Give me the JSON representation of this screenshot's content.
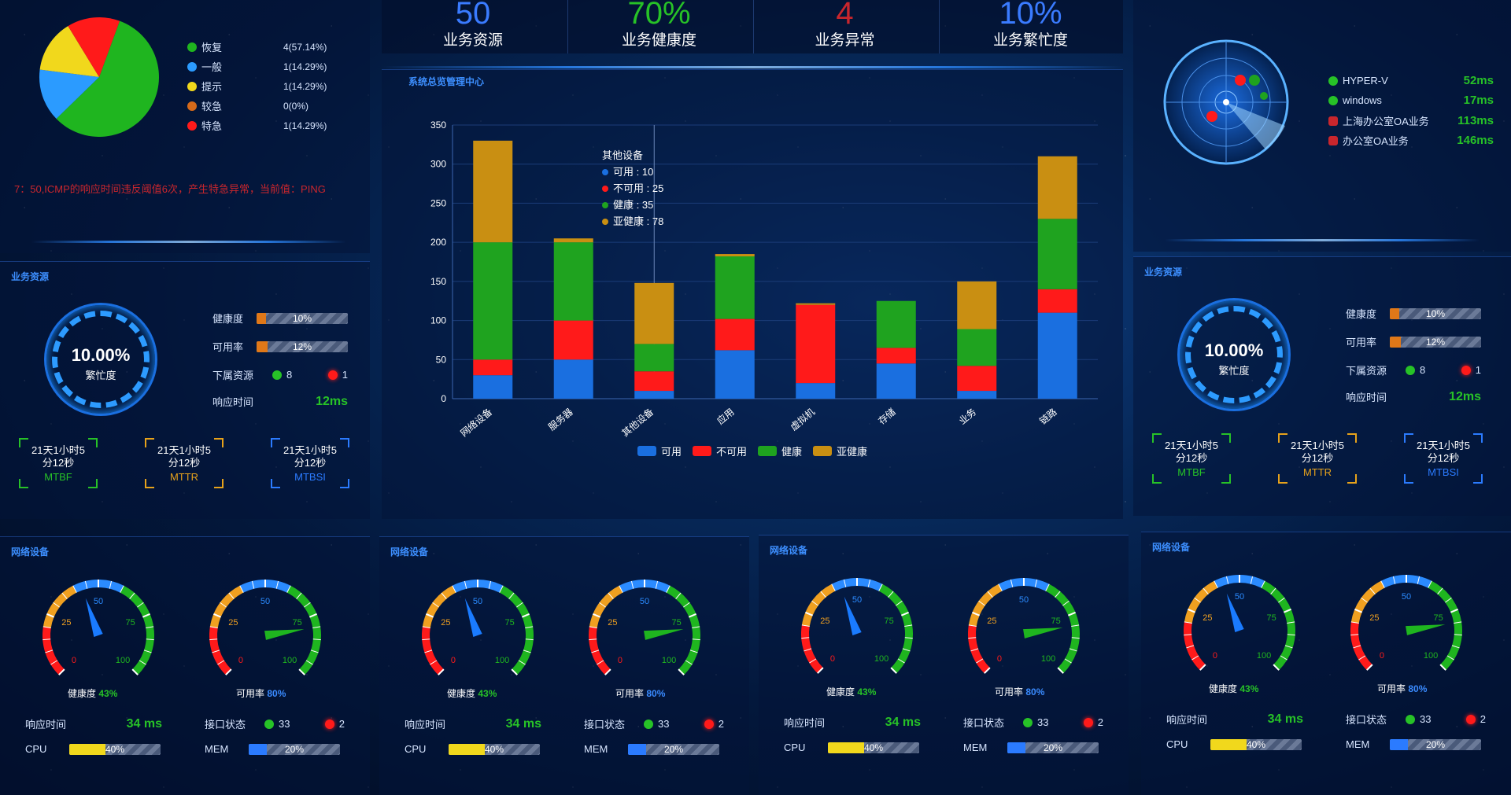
{
  "kpis": [
    {
      "value": "50",
      "label": "业务资源",
      "color": "#3a7bff"
    },
    {
      "value": "70%",
      "label": "业务健康度",
      "color": "#27c227"
    },
    {
      "value": "4",
      "label": "业务异常",
      "color": "#c9262d"
    },
    {
      "value": "10%",
      "label": "业务繁忙度",
      "color": "#3a7bff"
    }
  ],
  "alarm": {
    "legend": [
      {
        "label": "恢复",
        "value": "4(57.14%)",
        "color": "#1fb51f"
      },
      {
        "label": "一般",
        "value": "1(14.29%)",
        "color": "#2b9bff"
      },
      {
        "label": "提示",
        "value": "1(14.29%)",
        "color": "#f1d81c"
      },
      {
        "label": "较急",
        "value": "0(0%)",
        "color": "#d66a1a"
      },
      {
        "label": "特急",
        "value": "1(14.29%)",
        "color": "#ff1a1a"
      }
    ],
    "slices": [
      {
        "value": 57.14,
        "color": "#1fb51f"
      },
      {
        "value": 14.29,
        "color": "#2b9bff"
      },
      {
        "value": 14.29,
        "color": "#f1d81c"
      },
      {
        "value": 0,
        "color": "#d66a1a"
      },
      {
        "value": 14.29,
        "color": "#ff1a1a"
      }
    ],
    "message": "7：50,ICMP的响应时间违反阈值6次，产生特急异常，当前值：PING"
  },
  "center": {
    "title": "系统总览管理中心",
    "tooltip": {
      "title": "其他设备",
      "rows": [
        "可用 : 10",
        "不可用 : 25",
        "健康 : 35",
        "亚健康 : 78"
      ]
    }
  },
  "chart_data": {
    "type": "bar",
    "stacked": true,
    "categories": [
      "网络设备",
      "服务器",
      "其他设备",
      "应用",
      "虚拟机",
      "存储",
      "业务",
      "链路"
    ],
    "series": [
      {
        "name": "可用",
        "color": "#1a6fe0",
        "values": [
          30,
          50,
          10,
          62,
          20,
          45,
          10,
          110
        ]
      },
      {
        "name": "不可用",
        "color": "#ff1a1a",
        "values": [
          20,
          50,
          25,
          40,
          100,
          20,
          32,
          30
        ]
      },
      {
        "name": "健康",
        "color": "#1fa31f",
        "values": [
          150,
          100,
          35,
          80,
          0,
          60,
          47,
          90
        ]
      },
      {
        "name": "亚健康",
        "color": "#c98f12",
        "values": [
          130,
          5,
          78,
          3,
          2,
          0,
          61,
          80
        ]
      }
    ],
    "ylim": [
      0,
      350
    ],
    "yticks": [
      0,
      50,
      100,
      150,
      200,
      250,
      300,
      350
    ],
    "grid": true,
    "legend": "bottom"
  },
  "resource": {
    "title": "业务资源",
    "busy_value": "10.00%",
    "busy_label": "繁忙度",
    "health_label": "健康度",
    "health_value": "10%",
    "health_fill": 0.1,
    "avail_label": "可用率",
    "avail_value": "12%",
    "avail_fill": 0.12,
    "sub_label": "下属资源",
    "sub_ok": "8",
    "sub_bad": "1",
    "resp_label": "响应时间",
    "resp_value": "12ms",
    "mt": [
      {
        "text": "21天1小时5分12秒",
        "tag": "MTBF",
        "color": "#27c227"
      },
      {
        "text": "21天1小时5分12秒",
        "tag": "MTTR",
        "color": "#e7a21b"
      },
      {
        "text": "21天1小时5分12秒",
        "tag": "MTBSI",
        "color": "#2b7bff"
      }
    ]
  },
  "radar": {
    "items": [
      {
        "name": "HYPER-V",
        "value": "52ms",
        "color": "#27c227"
      },
      {
        "name": "windows",
        "value": "17ms",
        "color": "#27c227"
      },
      {
        "name": "上海办公室OA业务",
        "value": "113ms",
        "color": "#c9262d"
      },
      {
        "name": "办公室OA业务",
        "value": "146ms",
        "color": "#c9262d"
      }
    ]
  },
  "net": {
    "title": "网络设备",
    "ticks": [
      "0",
      "25",
      "50",
      "75",
      "100"
    ],
    "health_label": "健康度",
    "health_value": "43%",
    "health_pct": 43,
    "avail_label": "可用率",
    "avail_value": "80%",
    "avail_pct": 80,
    "resp_label": "响应时间",
    "resp_value": "34 ms",
    "port_label": "接口状态",
    "port_ok": "33",
    "port_bad": "2",
    "cpu_label": "CPU",
    "cpu_value": "40%",
    "cpu_fill": 0.4,
    "mem_label": "MEM",
    "mem_value": "20%",
    "mem_fill": 0.2
  }
}
